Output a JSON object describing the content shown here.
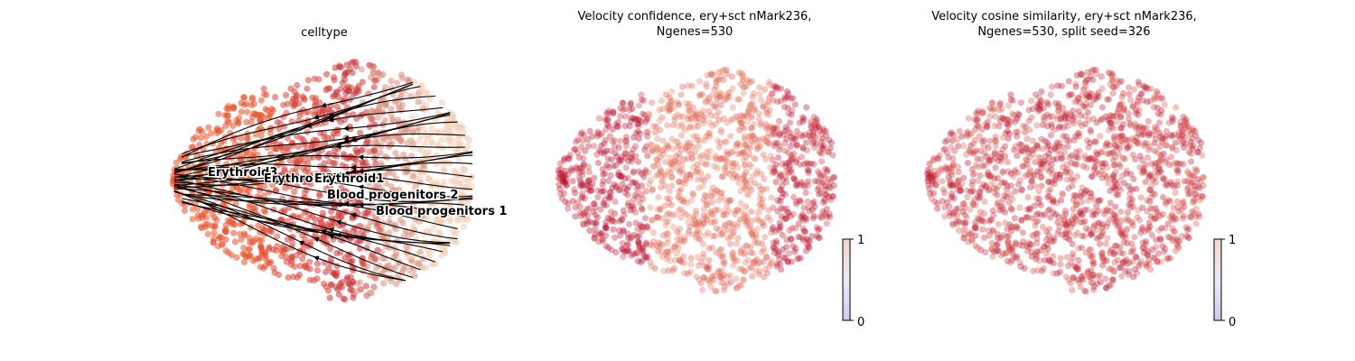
{
  "chart_data": [
    {
      "type": "scatter",
      "title": "celltype",
      "xlabel": "",
      "ylabel": "",
      "streamlines": true,
      "cluster_labels": [
        {
          "text": "Erythroid3",
          "color": "#e8532b"
        },
        {
          "text": "Erythroid2",
          "color": "#d9463b"
        },
        {
          "text": "Erythroid1",
          "color": "#cc3a3d"
        },
        {
          "text": "Blood progenitors 2",
          "color": "#d88f80"
        },
        {
          "text": "Blood progenitors 1",
          "color": "#f2cdb5"
        }
      ]
    },
    {
      "type": "scatter",
      "title_lines": [
        "Velocity confidence, ery+sct nMark236,",
        "Ngenes=530"
      ],
      "colorbar": {
        "min": 0,
        "max": 1,
        "tick_labels": [
          "0",
          "1"
        ],
        "colormap": "coolwarm-upper"
      },
      "color_levels": {
        "left_region": 0.98,
        "center_region": 0.82,
        "right_region": 0.97
      }
    },
    {
      "type": "scatter",
      "title_lines": [
        "Velocity cosine similarity, ery+sct nMark236,",
        "Ngenes=530, split seed=326"
      ],
      "colorbar": {
        "min": 0,
        "max": 1,
        "tick_labels": [
          "0",
          "1"
        ],
        "colormap": "coolwarm-upper"
      },
      "color_levels": {
        "overall": 0.93
      }
    }
  ]
}
